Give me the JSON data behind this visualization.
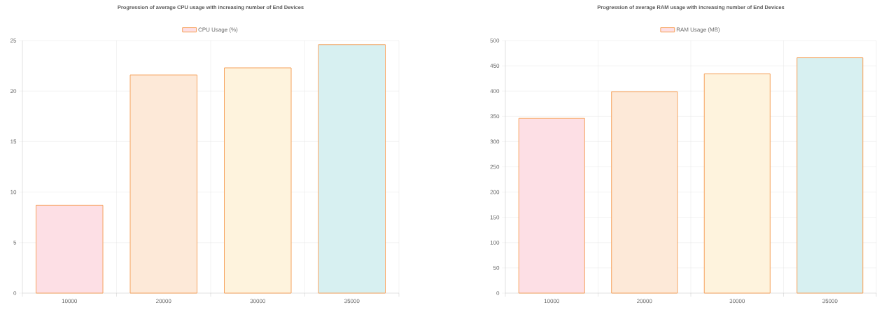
{
  "chart_data": [
    {
      "type": "bar",
      "title": "Progression of average CPU usage with increasing number of End Devices",
      "categories": [
        "10000",
        "20000",
        "30000",
        "35000"
      ],
      "series": [
        {
          "name": "CPU Usage (%)",
          "color": "#f6a35e",
          "colors": [
            "#fddfe5",
            "#fde9d8",
            "#fef3dd",
            "#d7f0f1"
          ],
          "values": [
            8.7,
            21.6,
            22.3,
            24.6
          ]
        }
      ],
      "ylim": [
        0,
        25
      ],
      "yticks": [
        0,
        5,
        10,
        15,
        20,
        25
      ],
      "grid": true,
      "legend": "top"
    },
    {
      "type": "bar",
      "title": "Progression of average RAM usage with increasing number of End Devices",
      "categories": [
        "10000",
        "20000",
        "30000",
        "35000"
      ],
      "series": [
        {
          "name": "RAM Usage (MB)",
          "color": "#f6a35e",
          "colors": [
            "#fddfe5",
            "#fde9d8",
            "#fef3dd",
            "#d7f0f1"
          ],
          "values": [
            346,
            399,
            434,
            466
          ]
        }
      ],
      "ylim": [
        0,
        500
      ],
      "yticks": [
        0,
        50,
        100,
        150,
        200,
        250,
        300,
        350,
        400,
        450,
        500
      ],
      "grid": true,
      "legend": "top"
    }
  ]
}
